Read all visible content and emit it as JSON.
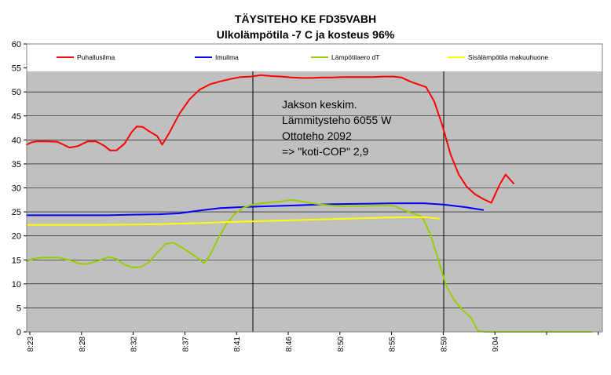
{
  "chart_data": {
    "type": "line",
    "title": "TÄYSITEHO KE FD35VABH",
    "subtitle": "Ulkolämpötila -7 C ja kosteus 96%",
    "x_tick_labels": [
      "8:23",
      "8:28",
      "8:32",
      "8:37",
      "8:41",
      "8:46",
      "8:50",
      "8:55",
      "8:59",
      "9:04"
    ],
    "ylim": [
      0,
      60
    ],
    "y_ticks": [
      0,
      5,
      10,
      15,
      20,
      25,
      30,
      35,
      40,
      45,
      50,
      55,
      60
    ],
    "grid": true,
    "legend_placement": "top",
    "annotation": [
      "Jakson keskim.",
      "Lämmitysteho 6055 W",
      "Ottoteho 2092",
      "=> \"koti-COP\" 2,9"
    ],
    "series": [
      {
        "name": "Puhallusilma",
        "color": "#ff0000",
        "values": [
          [
            0,
            39.0
          ],
          [
            0.5,
            39.5
          ],
          [
            1,
            39.7
          ],
          [
            2,
            39.7
          ],
          [
            3,
            39.6
          ],
          [
            3.6,
            39.0
          ],
          [
            4.2,
            38.4
          ],
          [
            5,
            38.7
          ],
          [
            6,
            39.7
          ],
          [
            6.8,
            39.7
          ],
          [
            7.6,
            38.8
          ],
          [
            8.2,
            37.8
          ],
          [
            8.8,
            37.8
          ],
          [
            9.6,
            39.2
          ],
          [
            10.3,
            41.6
          ],
          [
            10.8,
            42.8
          ],
          [
            11.4,
            42.7
          ],
          [
            12,
            41.8
          ],
          [
            12.8,
            40.8
          ],
          [
            13.3,
            39.0
          ],
          [
            14,
            41.5
          ],
          [
            15,
            45.5
          ],
          [
            16,
            48.5
          ],
          [
            17,
            50.5
          ],
          [
            18,
            51.6
          ],
          [
            19,
            52.2
          ],
          [
            20,
            52.7
          ],
          [
            21,
            53.1
          ],
          [
            22,
            53.2
          ],
          [
            23,
            53.5
          ],
          [
            24,
            53.3
          ],
          [
            25,
            53.2
          ],
          [
            26,
            53.0
          ],
          [
            27,
            52.9
          ],
          [
            28,
            52.9
          ],
          [
            29,
            53.0
          ],
          [
            30,
            53.0
          ],
          [
            31,
            53.1
          ],
          [
            32,
            53.1
          ],
          [
            33,
            53.1
          ],
          [
            34,
            53.1
          ],
          [
            35,
            53.2
          ],
          [
            36,
            53.2
          ],
          [
            36.8,
            53.0
          ],
          [
            37.6,
            52.2
          ],
          [
            38.4,
            51.6
          ],
          [
            39.2,
            51.0
          ],
          [
            40,
            48.0
          ],
          [
            40.8,
            43.0
          ],
          [
            41.6,
            37.0
          ],
          [
            42.4,
            32.8
          ],
          [
            43.2,
            30.2
          ],
          [
            44,
            28.7
          ],
          [
            44.8,
            27.7
          ],
          [
            45.6,
            26.9
          ],
          [
            46.4,
            30.6
          ],
          [
            47,
            32.8
          ],
          [
            47.8,
            30.9
          ]
        ]
      },
      {
        "name": "Imuilma",
        "color": "#0000ff",
        "values": [
          [
            0,
            24.3
          ],
          [
            8,
            24.3
          ],
          [
            10,
            24.4
          ],
          [
            13,
            24.5
          ],
          [
            15,
            24.7
          ],
          [
            17,
            25.3
          ],
          [
            19,
            25.8
          ],
          [
            21,
            26.0
          ],
          [
            24,
            26.2
          ],
          [
            27,
            26.4
          ],
          [
            30,
            26.6
          ],
          [
            33,
            26.7
          ],
          [
            36,
            26.8
          ],
          [
            39,
            26.8
          ],
          [
            41,
            26.5
          ],
          [
            43,
            26.0
          ],
          [
            44.8,
            25.4
          ]
        ]
      },
      {
        "name": "Lämpötilaero dT",
        "color": "#99cc00",
        "values": [
          [
            0,
            14.7
          ],
          [
            0.6,
            15.2
          ],
          [
            1.6,
            15.5
          ],
          [
            3,
            15.5
          ],
          [
            4.2,
            15.0
          ],
          [
            5,
            14.3
          ],
          [
            5.8,
            14.1
          ],
          [
            7,
            14.8
          ],
          [
            8,
            15.6
          ],
          [
            8.8,
            15.2
          ],
          [
            9.6,
            14.0
          ],
          [
            10.4,
            13.4
          ],
          [
            11.2,
            13.5
          ],
          [
            12,
            14.5
          ],
          [
            12.8,
            16.5
          ],
          [
            13.6,
            18.3
          ],
          [
            14.4,
            18.6
          ],
          [
            15.2,
            17.6
          ],
          [
            16,
            16.5
          ],
          [
            16.8,
            15.4
          ],
          [
            17.4,
            14.3
          ],
          [
            18,
            16.0
          ],
          [
            18.8,
            19.5
          ],
          [
            19.6,
            22.5
          ],
          [
            20.4,
            24.5
          ],
          [
            21.2,
            25.8
          ],
          [
            22,
            26.4
          ],
          [
            23,
            26.8
          ],
          [
            24,
            27.0
          ],
          [
            25,
            27.2
          ],
          [
            26,
            27.5
          ],
          [
            27,
            27.2
          ],
          [
            28,
            26.8
          ],
          [
            29,
            26.5
          ],
          [
            30,
            26.3
          ],
          [
            31,
            26.2
          ],
          [
            32,
            26.2
          ],
          [
            33,
            26.2
          ],
          [
            34,
            26.3
          ],
          [
            35,
            26.3
          ],
          [
            36,
            26.3
          ],
          [
            37,
            25.4
          ],
          [
            38,
            24.6
          ],
          [
            38.8,
            24.0
          ],
          [
            39.6,
            20.5
          ],
          [
            40.4,
            15.0
          ],
          [
            41.2,
            9.5
          ],
          [
            42,
            6.5
          ],
          [
            42.8,
            4.5
          ],
          [
            43.6,
            3.0
          ],
          [
            44.3,
            0.2
          ],
          [
            45,
            0
          ],
          [
            48,
            0
          ],
          [
            51,
            0
          ],
          [
            55.5,
            0
          ]
        ]
      },
      {
        "name": "Sisälämpötila makuuhuone",
        "color": "#ffff00",
        "values": [
          [
            0,
            22.3
          ],
          [
            7,
            22.3
          ],
          [
            12,
            22.4
          ],
          [
            16,
            22.6
          ],
          [
            20,
            22.9
          ],
          [
            25,
            23.2
          ],
          [
            30,
            23.5
          ],
          [
            35,
            23.8
          ],
          [
            39,
            23.9
          ],
          [
            40.5,
            23.6
          ]
        ]
      }
    ]
  }
}
